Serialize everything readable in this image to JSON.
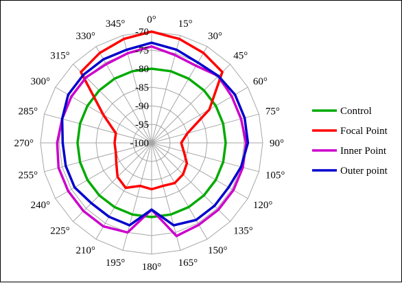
{
  "chart_data": {
    "type": "radar",
    "title": "",
    "angles": [
      0,
      15,
      30,
      45,
      60,
      75,
      90,
      105,
      120,
      135,
      150,
      165,
      180,
      195,
      210,
      225,
      240,
      255,
      270,
      285,
      300,
      315,
      330,
      345
    ],
    "angle_labels": [
      "0°",
      "15°",
      "30°",
      "45°",
      "60°",
      "75°",
      "90°",
      "105°",
      "120°",
      "135°",
      "150°",
      "165°",
      "180°",
      "195°",
      "210°",
      "225°",
      "240°",
      "255°",
      "270°",
      "285°",
      "300°",
      "315°",
      "330°",
      "345°"
    ],
    "radial_ticks": [
      -70,
      -75,
      -80,
      -85,
      -90,
      -95,
      -100
    ],
    "radial_tick_labels": [
      "-70",
      "-75",
      "-80",
      "-85",
      "-90",
      "-95",
      "-100"
    ],
    "rlim": [
      -100,
      -70
    ],
    "grid": true,
    "legend_position": "right",
    "series": [
      {
        "name": "Control",
        "color": "#00aa00",
        "values": [
          -80,
          -80,
          -80,
          -80,
          -80,
          -80,
          -80,
          -80,
          -80,
          -80,
          -80,
          -80,
          -80,
          -80,
          -80,
          -80,
          -80,
          -80,
          -80,
          -80,
          -80,
          -80,
          -80,
          -80
        ]
      },
      {
        "name": "Focal Point",
        "color": "#ff0000",
        "values": [
          -70,
          -71,
          -72,
          -73,
          -82,
          -90,
          -92,
          -91,
          -89,
          -88,
          -87.5,
          -88,
          -87.5,
          -88,
          -86,
          -87,
          -89,
          -90,
          -90,
          -90,
          -85,
          -73,
          -72,
          -71
        ]
      },
      {
        "name": "Inner Point",
        "color": "#cc00cc",
        "values": [
          -74,
          -75.5,
          -76,
          -74.5,
          -75,
          -75,
          -74.5,
          -74.5,
          -74.5,
          -74.5,
          -74.5,
          -74,
          -82,
          -75,
          -74,
          -74,
          -74,
          -74,
          -74.5,
          -75,
          -75,
          -75,
          -75.5,
          -75
        ]
      },
      {
        "name": "Outer point",
        "color": "#0000cc",
        "values": [
          -73,
          -74,
          -75,
          -74.5,
          -74,
          -74,
          -74,
          -75,
          -76,
          -76,
          -76,
          -77,
          -82,
          -77,
          -77,
          -77,
          -76,
          -76,
          -76,
          -75,
          -74,
          -74,
          -74,
          -74
        ]
      }
    ]
  }
}
